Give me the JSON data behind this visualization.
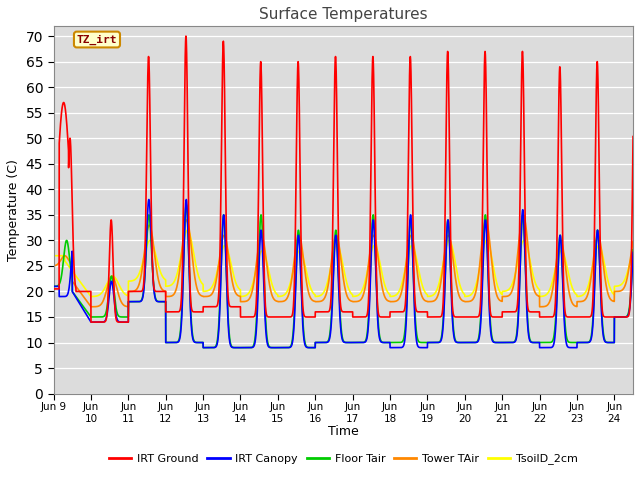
{
  "title": "Surface Temperatures",
  "xlabel": "Time",
  "ylabel": "Temperature (C)",
  "xlim_days": 15.5,
  "ylim": [
    0,
    72
  ],
  "yticks": [
    0,
    5,
    10,
    15,
    20,
    25,
    30,
    35,
    40,
    45,
    50,
    55,
    60,
    65,
    70
  ],
  "xtick_labels": [
    "Jun 9",
    "Jun\n10",
    "Jun\n11",
    "Jun\n12",
    "Jun\n13",
    "Jun\n14",
    "Jun\n15",
    "Jun\n16",
    "Jun\n17",
    "Jun\n18",
    "Jun\n19",
    "Jun\n20",
    "Jun\n21",
    "Jun\n22",
    "Jun\n23",
    "Jun\n24"
  ],
  "annotation_text": "TZ_irt",
  "bg_color": "#dcdcdc",
  "legend": [
    {
      "label": "IRT Ground",
      "color": "#ff0000"
    },
    {
      "label": "IRT Canopy",
      "color": "#0000ff"
    },
    {
      "label": "Floor Tair",
      "color": "#00cc00"
    },
    {
      "label": "Tower TAir",
      "color": "#ff8800"
    },
    {
      "label": "TsoilD_2cm",
      "color": "#ffff00"
    }
  ],
  "irt_peaks": [
    57,
    34,
    66,
    70,
    69,
    65,
    65,
    66,
    66,
    66,
    67,
    67,
    67,
    64,
    65,
    65
  ],
  "irt_nights": [
    20,
    14,
    20,
    16,
    17,
    15,
    15,
    16,
    15,
    16,
    15,
    15,
    16,
    15,
    15,
    15
  ],
  "can_peaks": [
    30,
    22,
    38,
    38,
    35,
    32,
    31,
    31,
    34,
    35,
    34,
    34,
    36,
    31,
    32,
    32
  ],
  "can_nights": [
    19,
    14,
    18,
    10,
    9,
    9,
    9,
    10,
    10,
    9,
    10,
    10,
    10,
    9,
    10,
    15
  ],
  "floor_peaks": [
    30,
    23,
    35,
    37,
    35,
    35,
    32,
    32,
    35,
    34,
    34,
    35,
    35,
    31,
    32,
    32
  ],
  "floor_nights": [
    20,
    15,
    18,
    10,
    9,
    9,
    9,
    10,
    10,
    10,
    10,
    10,
    10,
    10,
    10,
    15
  ],
  "tower_peaks": [
    27,
    23,
    33,
    34,
    31,
    31,
    31,
    31,
    31,
    31,
    31,
    34,
    35,
    30,
    31,
    31
  ],
  "tower_nights": [
    20,
    17,
    20,
    19,
    19,
    18,
    18,
    18,
    18,
    18,
    18,
    18,
    19,
    17,
    18,
    20
  ],
  "soil_peaks": [
    27,
    23,
    30,
    32,
    29,
    28,
    28,
    29,
    29,
    29,
    30,
    30,
    30,
    28,
    29,
    29
  ],
  "soil_nights": [
    21,
    19,
    22,
    21,
    20,
    19,
    19,
    19,
    19,
    19,
    19,
    19,
    20,
    19,
    19,
    21
  ]
}
